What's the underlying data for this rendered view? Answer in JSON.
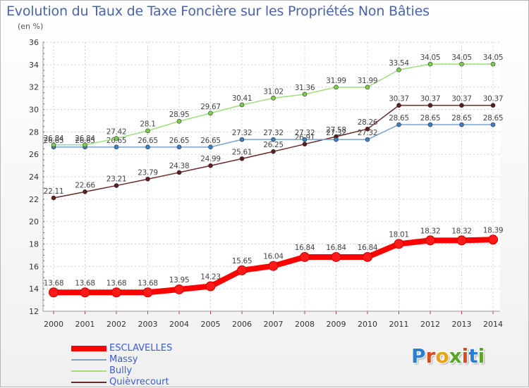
{
  "header": {
    "title": "Evolution du Taux de Taxe Foncière sur les Propriétés Non Bâties",
    "unit": "(en %)"
  },
  "logo": {
    "letters": [
      "P",
      "r",
      "o",
      "x",
      "i",
      "t",
      "i"
    ],
    "colors": [
      "#2b7fd1",
      "#d84b1e",
      "#e8a21a",
      "#5aa52c",
      "#d84b1e",
      "#2b7fd1",
      "#5aa52c"
    ]
  },
  "chart_data": {
    "type": "line",
    "x": [
      2000,
      2001,
      2002,
      2003,
      2004,
      2005,
      2006,
      2007,
      2008,
      2009,
      2010,
      2011,
      2012,
      2013,
      2014
    ],
    "ylim": [
      12,
      36
    ],
    "yticks": [
      12,
      14,
      16,
      18,
      20,
      22,
      24,
      26,
      28,
      30,
      32,
      34,
      36
    ],
    "grid": true,
    "legend_position": "bottom-left",
    "series": [
      {
        "name": "Quièvrecourt",
        "color": "#6b2a2a",
        "marker": "#5a1e1e",
        "width": 1.5,
        "values": [
          22.11,
          22.66,
          23.21,
          23.79,
          24.38,
          24.99,
          25.61,
          26.25,
          26.91,
          27.58,
          28.26,
          30.37,
          30.37,
          30.37,
          30.37
        ],
        "labels": [
          "22.11",
          "22.66",
          "23.21",
          "23.79",
          "24.38",
          "24.99",
          "25.61",
          "26.25",
          "26.91",
          "27.58",
          "28.26",
          "30.37",
          "30.37",
          "30.37",
          "30.37"
        ]
      },
      {
        "name": "Massy",
        "color": "#7aa3cf",
        "marker": "#3d7fc4",
        "width": 1.5,
        "values": [
          26.65,
          26.65,
          26.65,
          26.65,
          26.65,
          26.65,
          27.32,
          27.32,
          27.32,
          27.32,
          27.32,
          28.65,
          28.65,
          28.65,
          28.65
        ],
        "labels": [
          "26.65",
          "26.65",
          "26.65",
          "26.65",
          "26.65",
          "26.65",
          "27.32",
          "27.32",
          "27.32",
          "27.32",
          "27.32",
          "28.65",
          "28.65",
          "28.65",
          "28.65"
        ]
      },
      {
        "name": "Bully",
        "color": "#9ee07a",
        "marker": "#7bd04a",
        "width": 1.5,
        "values": [
          26.84,
          26.84,
          27.42,
          28.1,
          28.95,
          29.67,
          30.41,
          31.02,
          31.36,
          31.99,
          31.99,
          33.54,
          34.05,
          34.05,
          34.05
        ],
        "labels": [
          "26.84",
          "26.84",
          "27.42",
          "28.1",
          "28.95",
          "29.67",
          "30.41",
          "31.02",
          "31.36",
          "31.99",
          "31.99",
          "33.54",
          "34.05",
          "34.05",
          "34.05"
        ]
      },
      {
        "name": "ESCLAVELLES",
        "color": "#ff0000",
        "marker": "#e00000",
        "width": 8,
        "values": [
          13.68,
          13.68,
          13.68,
          13.68,
          13.95,
          14.23,
          15.65,
          16.04,
          16.84,
          16.84,
          16.84,
          18.01,
          18.32,
          18.32,
          18.39
        ],
        "labels": [
          "13.68",
          "13.68",
          "13.68",
          "13.68",
          "13.95",
          "14.23",
          "15.65",
          "16.04",
          "16.84",
          "16.84",
          "16.84",
          "18.01",
          "18.32",
          "18.32",
          "18.39"
        ]
      }
    ],
    "legend_order": [
      "ESCLAVELLES",
      "Massy",
      "Bully",
      "Quièvrecourt"
    ]
  }
}
